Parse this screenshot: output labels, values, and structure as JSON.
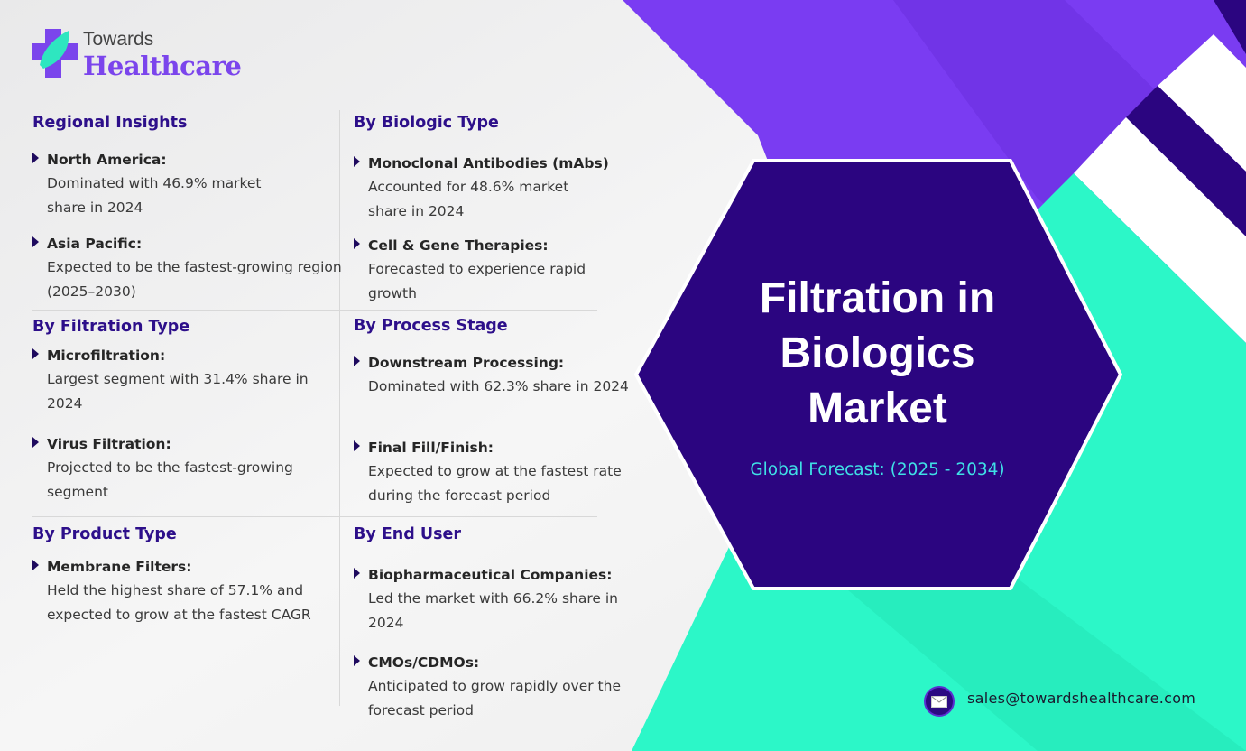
{
  "brand": {
    "top": "Towards",
    "bottom": "Healthcare"
  },
  "colors": {
    "purple": "#7a3cf2",
    "dark_purple": "#2b0580",
    "teal": "#2cf7c8",
    "heading": "#2d0f8a"
  },
  "title": {
    "line1": "Filtration in",
    "line2": "Biologics",
    "line3": "Market"
  },
  "subtitle": "Global Forecast: (2025 - 2034)",
  "contact": {
    "icon": "mail-icon",
    "email": "sales@towardshealthcare.com"
  },
  "sections": {
    "regional": {
      "heading": "Regional Insights",
      "items": [
        {
          "title": "North America:",
          "body": "Dominated with 46.9% market share in 2024"
        },
        {
          "title": "Asia Pacific:",
          "body": "Expected to be the fastest-growing region (2025–2030)"
        }
      ]
    },
    "filtration": {
      "heading": "By Filtration Type",
      "items": [
        {
          "title": "Microfiltration:",
          "body": "Largest segment with 31.4% share in 2024"
        },
        {
          "title": "Virus Filtration:",
          "body": "Projected to be the fastest-growing segment"
        }
      ]
    },
    "product": {
      "heading": "By Product Type",
      "items": [
        {
          "title": "Membrane Filters:",
          "body": "Held the highest share of 57.1% and expected to grow at the fastest CAGR"
        }
      ]
    },
    "biologic": {
      "heading": "By Biologic Type",
      "items": [
        {
          "title": "Monoclonal Antibodies (mAbs)",
          "body": "Accounted for 48.6% market share in 2024"
        },
        {
          "title": "Cell & Gene Therapies:",
          "body": "Forecasted to experience rapid growth"
        }
      ]
    },
    "process": {
      "heading": "By Process Stage",
      "items": [
        {
          "title": "Downstream Processing:",
          "body": "Dominated with 62.3% share in 2024"
        },
        {
          "title": "Final Fill/Finish:",
          "body": "Expected to grow at the fastest rate during the forecast period"
        }
      ]
    },
    "enduser": {
      "heading": "By End User",
      "items": [
        {
          "title": "Biopharmaceutical Companies:",
          "body": "Led the market with 66.2% share in 2024"
        },
        {
          "title": "CMOs/CDMOs:",
          "body": "Anticipated to grow rapidly over the forecast period"
        }
      ]
    }
  }
}
